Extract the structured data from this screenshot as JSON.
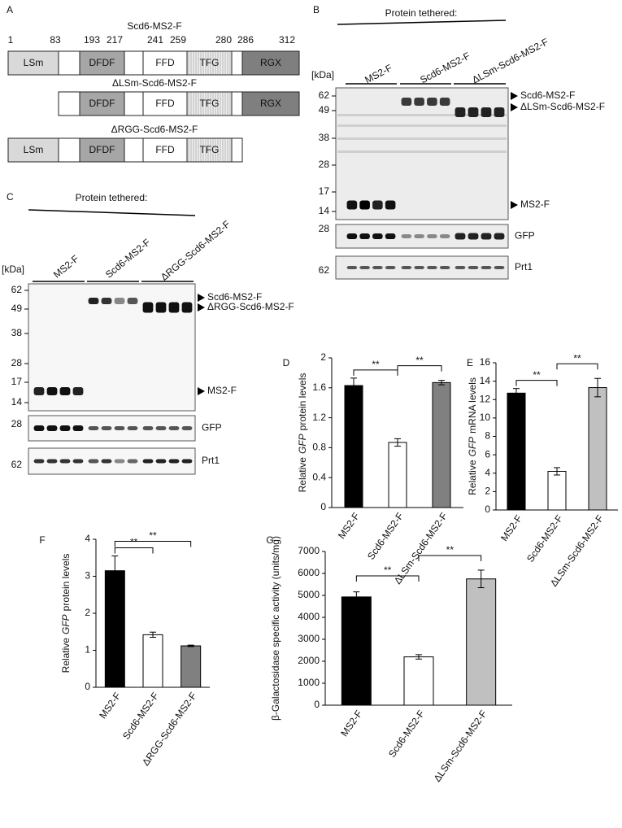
{
  "panel_a": {
    "label": "A",
    "positions": [
      1,
      83,
      193,
      217,
      241,
      259,
      280,
      286,
      312
    ],
    "constructs": [
      {
        "name": "Scd6-MS2-F",
        "domains": [
          "LSm",
          "DFDF",
          "FFD",
          "TFG",
          "RGX"
        ]
      },
      {
        "name": "ΔLSm-Scd6-MS2-F",
        "domains": [
          "DFDF",
          "FFD",
          "TFG",
          "RGX"
        ]
      },
      {
        "name": "ΔRGG-Scd6-MS2-F",
        "domains": [
          "LSm",
          "DFDF",
          "FFD",
          "TFG"
        ]
      }
    ]
  },
  "panel_b": {
    "label": "B",
    "header": "Protein tethered:",
    "lanes": [
      "MS2-F",
      "Scd6-MS2-F",
      "ΔLSm-Scd6-MS2-F"
    ],
    "unit": "[kDa]",
    "markers": [
      62,
      49,
      38,
      28,
      17,
      14
    ],
    "bands": [
      "Scd6-MS2-F",
      "ΔLSm-Scd6-MS2-F",
      "MS2-F"
    ],
    "blots": [
      {
        "name": "GFP",
        "marker": 28
      },
      {
        "name": "Prt1",
        "marker": 62
      }
    ]
  },
  "panel_c": {
    "label": "C",
    "header": "Protein tethered:",
    "lanes": [
      "MS2-F",
      "Scd6-MS2-F",
      "ΔRGG-Scd6-MS2-F"
    ],
    "unit": "[kDa]",
    "markers": [
      62,
      49,
      38,
      28,
      17,
      14
    ],
    "bands": [
      "Scd6-MS2-F",
      "ΔRGG-Scd6-MS2-F",
      "MS2-F"
    ],
    "blots": [
      {
        "name": "GFP",
        "marker": 28
      },
      {
        "name": "Prt1",
        "marker": 62
      }
    ]
  },
  "chart_data": [
    {
      "panel": "D",
      "type": "bar",
      "ylabel": [
        {
          "text": "Relative"
        },
        {
          "text": "GFP",
          "italic": true
        },
        {
          "text": "protein levels"
        }
      ],
      "categories": [
        "MS2-F",
        "Scd6-MS2-F",
        "ΔLSm-Scd6-MS2-F"
      ],
      "values": [
        1.63,
        0.87,
        1.67
      ],
      "errors": [
        0.1,
        0.05,
        0.03
      ],
      "colors": [
        "#000000",
        "#ffffff",
        "#808080"
      ],
      "ylim": [
        0,
        2
      ],
      "yticks": [
        0,
        0.4,
        0.8,
        1.2,
        1.6,
        2
      ],
      "comparisons": [
        {
          "pair": [
            0,
            1
          ],
          "label": "**"
        },
        {
          "pair": [
            1,
            2
          ],
          "label": "**"
        }
      ]
    },
    {
      "panel": "E",
      "type": "bar",
      "ylabel": [
        {
          "text": "Relative"
        },
        {
          "text": "GFP",
          "italic": true
        },
        {
          "text": "mRNA levels"
        }
      ],
      "categories": [
        "MS2-F",
        "Scd6-MS2-F",
        "ΔLSm-Scd6-MS2-F"
      ],
      "values": [
        12.7,
        4.2,
        13.3
      ],
      "errors": [
        0.5,
        0.4,
        1.0
      ],
      "colors": [
        "#000000",
        "#ffffff",
        "#c0c0c0"
      ],
      "ylim": [
        0,
        16
      ],
      "yticks": [
        0,
        2,
        4,
        6,
        8,
        10,
        12,
        14,
        16
      ],
      "comparisons": [
        {
          "pair": [
            0,
            1
          ],
          "label": "**"
        },
        {
          "pair": [
            1,
            2
          ],
          "label": "**"
        }
      ]
    },
    {
      "panel": "F",
      "type": "bar",
      "ylabel": [
        {
          "text": "Relative"
        },
        {
          "text": "GFP",
          "italic": true
        },
        {
          "text": "protein levels"
        }
      ],
      "categories": [
        "MS2-F",
        "Scd6-MS2-F",
        "ΔRGG-Scd6-MS2-F"
      ],
      "values": [
        3.15,
        1.42,
        1.12
      ],
      "errors": [
        0.4,
        0.07,
        0.02
      ],
      "colors": [
        "#000000",
        "#ffffff",
        "#808080"
      ],
      "ylim": [
        0,
        4
      ],
      "yticks": [
        0,
        1,
        2,
        3,
        4
      ],
      "comparisons": [
        {
          "pair": [
            0,
            1
          ],
          "label": "**"
        },
        {
          "pair": [
            0,
            2
          ],
          "label": "**"
        }
      ]
    },
    {
      "panel": "G",
      "type": "bar",
      "ylabel": [
        {
          "text": "β-Galactosidase specific activity (units/mg)"
        }
      ],
      "categories": [
        "MS2-F",
        "Scd6-MS2-F",
        "ΔLSm-Scd6-MS2-F"
      ],
      "values": [
        4930,
        2200,
        5750
      ],
      "errors": [
        230,
        100,
        400
      ],
      "colors": [
        "#000000",
        "#ffffff",
        "#c0c0c0"
      ],
      "ylim": [
        0,
        7000
      ],
      "yticks": [
        0,
        1000,
        2000,
        3000,
        4000,
        5000,
        6000,
        7000
      ],
      "comparisons": [
        {
          "pair": [
            0,
            1
          ],
          "label": "**"
        },
        {
          "pair": [
            1,
            2
          ],
          "label": "**"
        }
      ]
    }
  ]
}
